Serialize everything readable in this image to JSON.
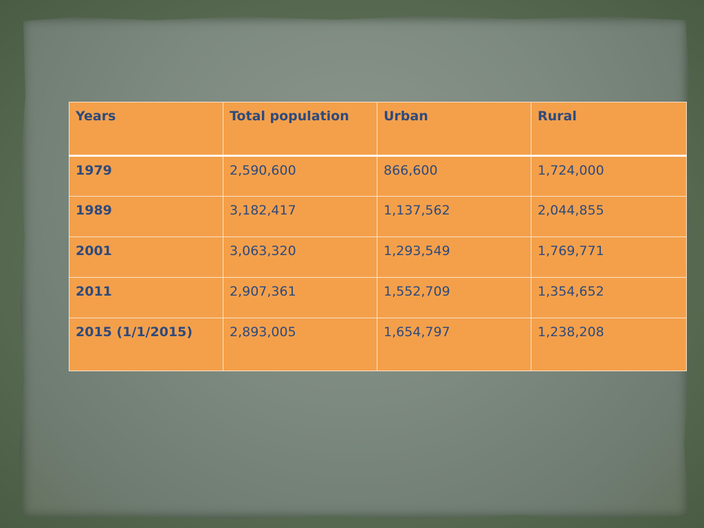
{
  "table": {
    "headers": [
      "Years",
      "Total population",
      "Urban",
      "Rural"
    ],
    "rows": [
      [
        "1979",
        "2,590,600",
        "866,600",
        "1,724,000"
      ],
      [
        "1989",
        "3,182,417",
        "1,137,562",
        "2,044,855"
      ],
      [
        "2001",
        "3,063,320",
        "1,293,549",
        "1,769,771"
      ],
      [
        "2011",
        "2,907,361",
        "1,552,709",
        "1,354,652"
      ],
      [
        "2015 (1/1/2015)",
        "2,893,005",
        "1,654,797",
        "1,238,208"
      ]
    ]
  },
  "colors": {
    "cell_background": "#f4a04b",
    "text": "#2e4a7c",
    "border": "#fbe3c8",
    "paper": "#7d8a80",
    "backdrop": "#5c6e55"
  }
}
